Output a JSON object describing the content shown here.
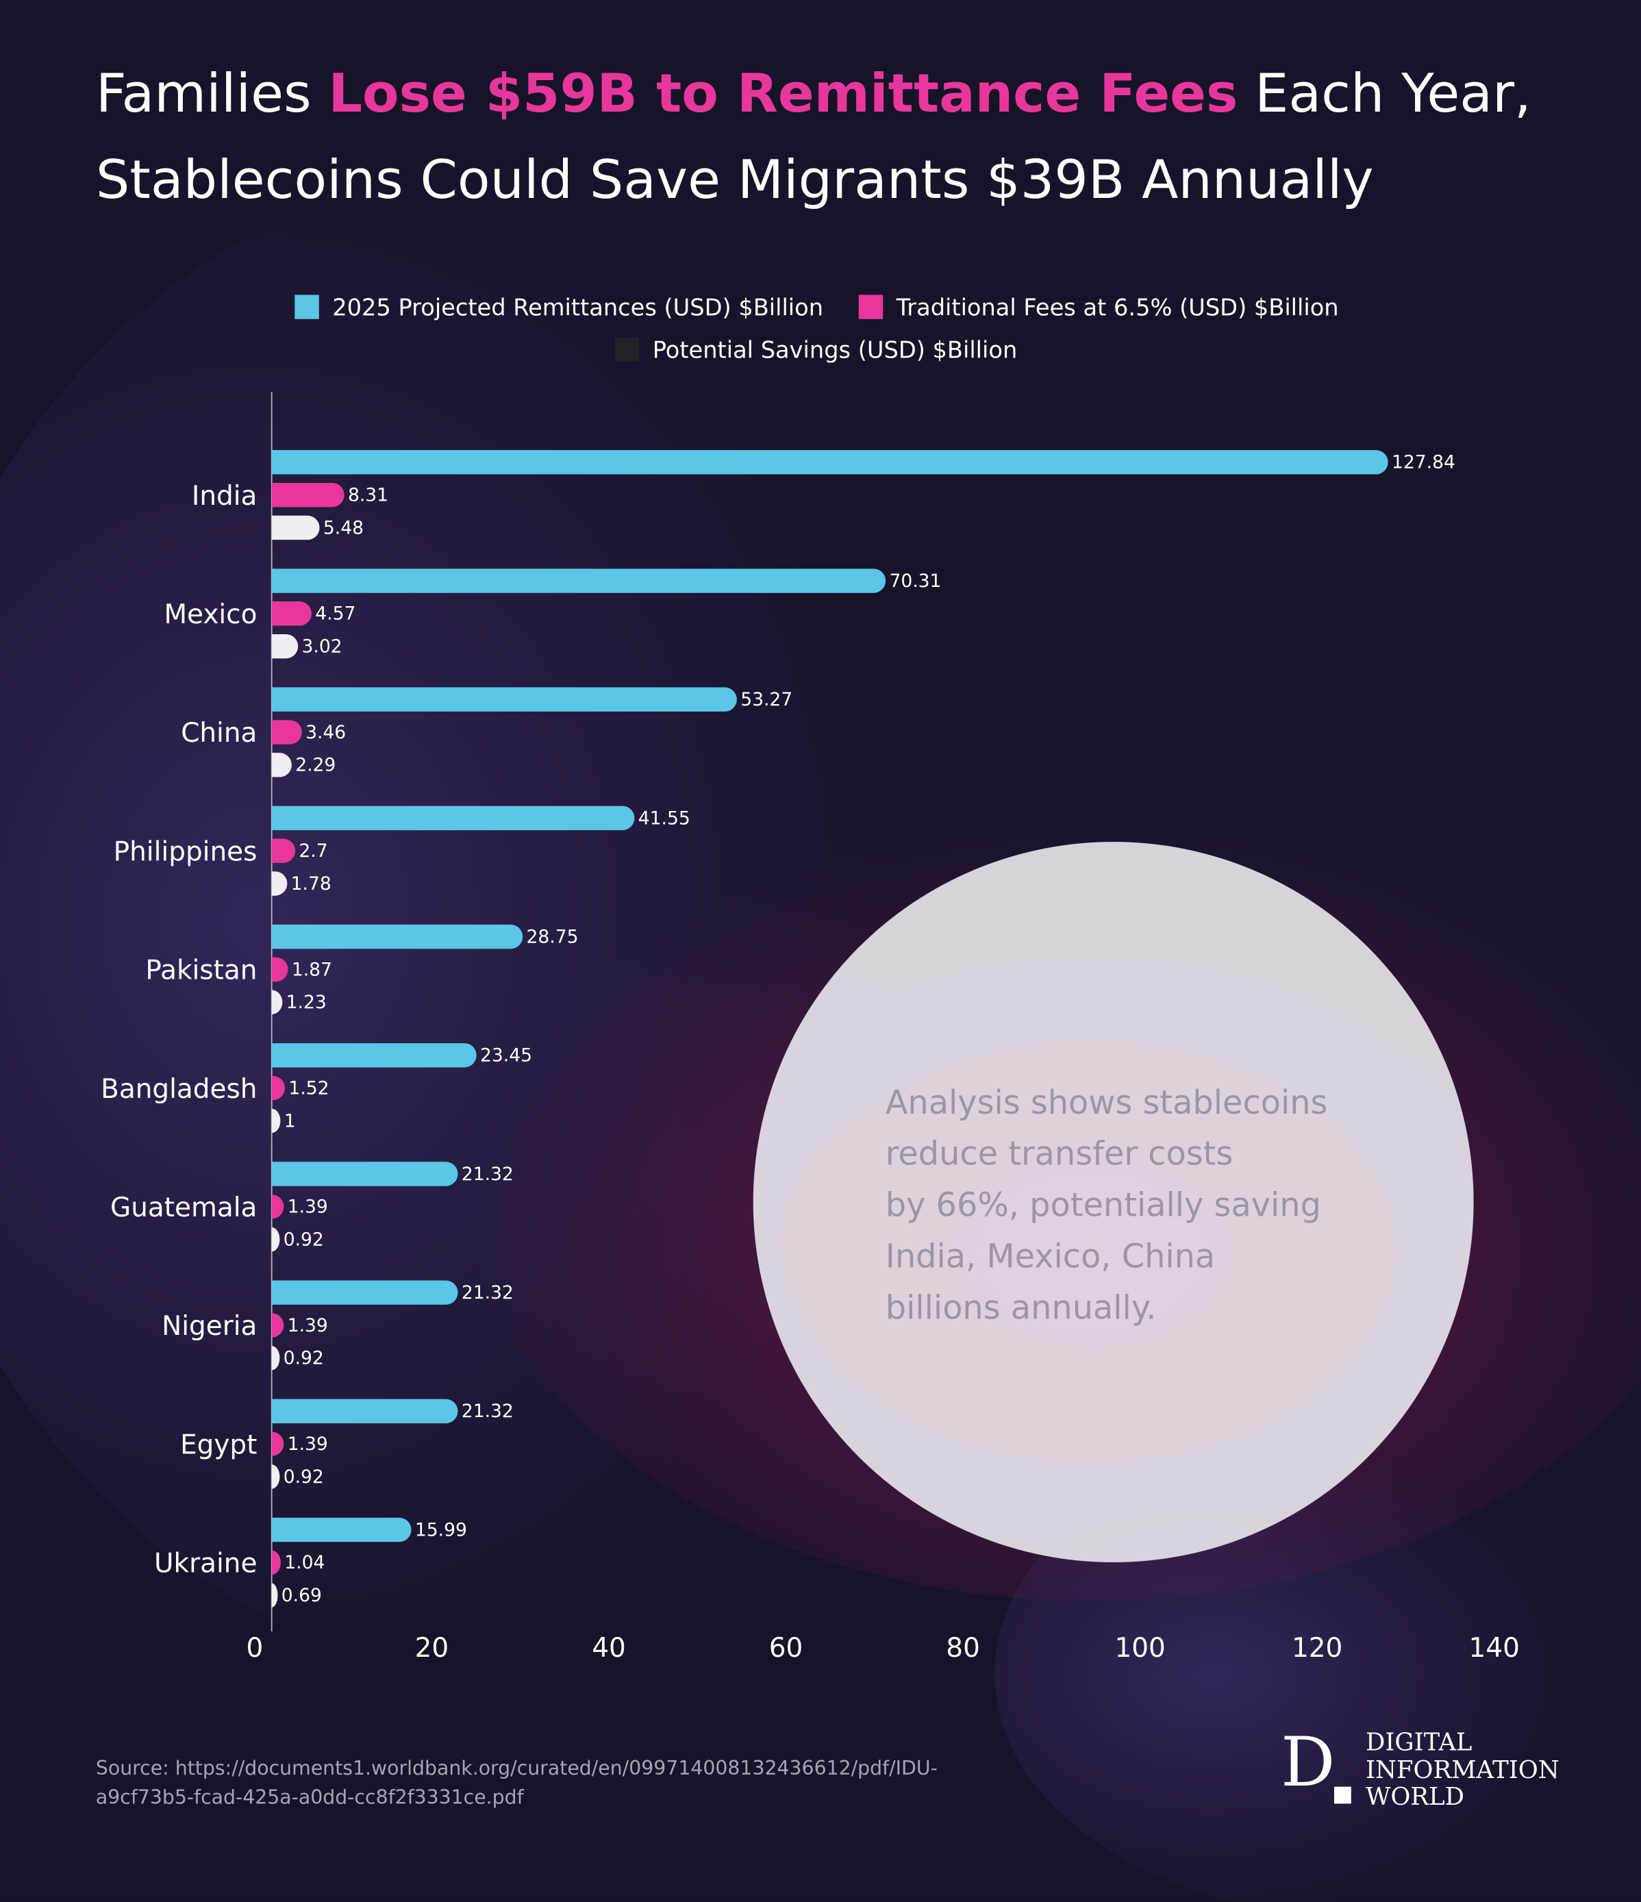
{
  "chart_data": {
    "type": "bar",
    "orientation": "horizontal",
    "title": [
      [
        "Families ",
        "Lose $59B to Remittance Fees",
        " Each Year,"
      ],
      [
        "Stablecoins Could Save Migrants $39B Annually"
      ]
    ],
    "categories": [
      "India",
      "Mexico",
      "China",
      "Philippines",
      "Pakistan",
      "Bangladesh",
      "Guatemala",
      "Nigeria",
      "Egypt",
      "Ukraine"
    ],
    "series": [
      {
        "name": "2025 Projected Remittances (USD) $Billion",
        "color": "#5bc6e6",
        "values": [
          127.84,
          70.31,
          53.27,
          41.55,
          28.75,
          23.45,
          21.32,
          21.32,
          21.32,
          15.99
        ]
      },
      {
        "name": "Traditional Fees at 6.5% (USD) $Billion",
        "color": "#e8379b",
        "values": [
          8.31,
          4.57,
          3.46,
          2.7,
          1.87,
          1.52,
          1.39,
          1.39,
          1.39,
          1.04
        ]
      },
      {
        "name": "Potential Savings (USD) $Billion",
        "color": "#f0eef2",
        "legend_color": "#222228",
        "values": [
          5.48,
          3.02,
          2.29,
          1.78,
          1.23,
          1,
          0.92,
          0.92,
          0.92,
          0.69
        ]
      }
    ],
    "xlim": [
      0,
      140
    ],
    "xticks": [
      0,
      20,
      40,
      60,
      80,
      100,
      120,
      140
    ],
    "annotation": [
      "Analysis shows stablecoins",
      "reduce transfer costs",
      "by 66%, potentially saving",
      "India, Mexico, China",
      "billions annually."
    ],
    "source": [
      "Source: https://documents1.worldbank.org/curated/en/099714008132436612/pdf/IDU-",
      "a9cf73b5-fcad-425a-a0dd-cc8f2f3331ce.pdf"
    ],
    "logo": {
      "mark": "D",
      "lines": [
        "DIGITAL",
        "INFORMATION",
        "WORLD"
      ]
    }
  }
}
